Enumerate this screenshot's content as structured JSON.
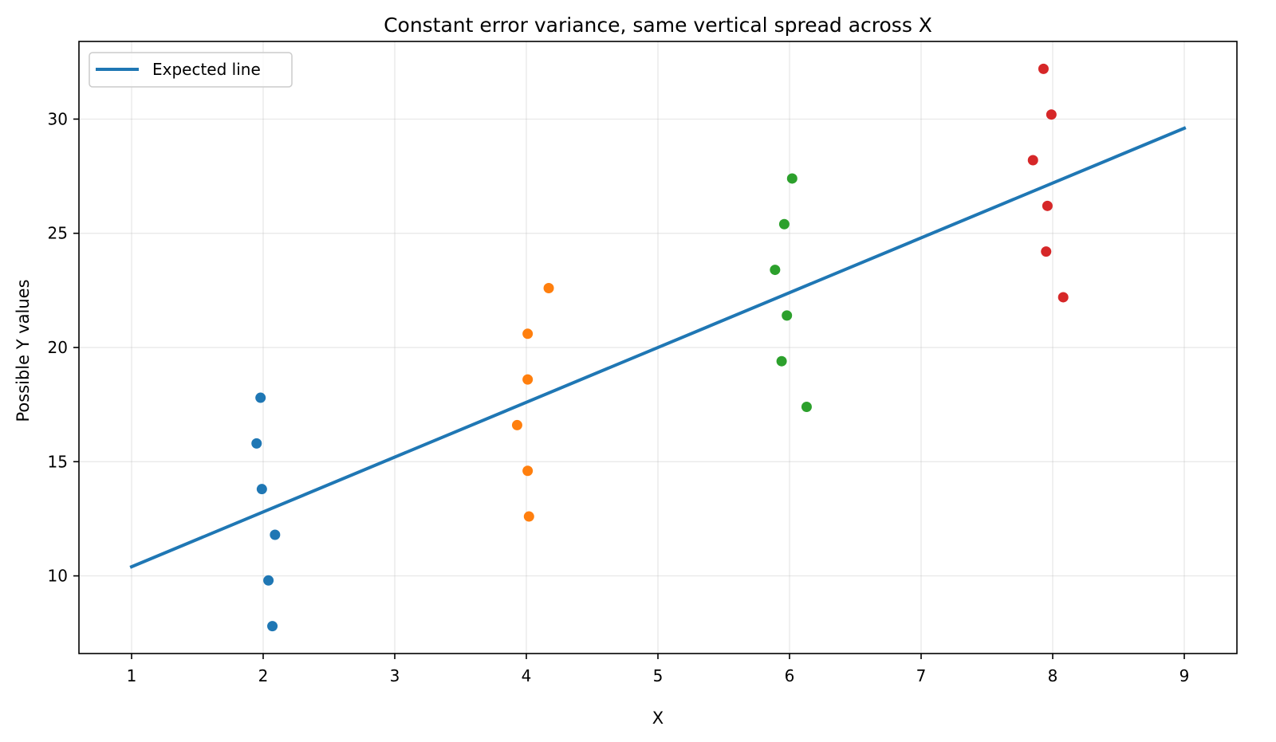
{
  "chart_data": {
    "type": "scatter",
    "title": "Constant error variance, same vertical spread across X",
    "xlabel": "X",
    "ylabel": "Possible Y values",
    "xlim": [
      0.6,
      9.4
    ],
    "ylim": [
      6.6,
      33.4
    ],
    "xticks": [
      1,
      2,
      3,
      4,
      5,
      6,
      7,
      8,
      9
    ],
    "yticks": [
      10,
      15,
      20,
      25,
      30
    ],
    "grid": true,
    "legend_position": "top-left",
    "line": {
      "name": "Expected line",
      "x": [
        1,
        9
      ],
      "y": [
        10.4,
        29.6
      ],
      "color": "#1f77b4"
    },
    "series": [
      {
        "color": "#1f77b4",
        "x": [
          1.98,
          1.95,
          1.99,
          2.09,
          2.04,
          2.07
        ],
        "y": [
          17.8,
          15.8,
          13.8,
          11.8,
          9.8,
          7.8
        ]
      },
      {
        "color": "#ff7f0e",
        "x": [
          4.17,
          4.01,
          4.01,
          3.93,
          4.01,
          4.02
        ],
        "y": [
          22.6,
          20.6,
          18.6,
          16.6,
          14.6,
          12.6
        ]
      },
      {
        "color": "#2ca02c",
        "x": [
          6.02,
          5.96,
          5.89,
          5.98,
          5.94,
          6.13
        ],
        "y": [
          27.4,
          25.4,
          23.4,
          21.4,
          19.4,
          17.4
        ]
      },
      {
        "color": "#d62728",
        "x": [
          7.93,
          7.99,
          7.85,
          7.96,
          7.95,
          8.08
        ],
        "y": [
          32.2,
          30.2,
          28.2,
          26.2,
          24.2,
          22.2
        ]
      }
    ]
  }
}
